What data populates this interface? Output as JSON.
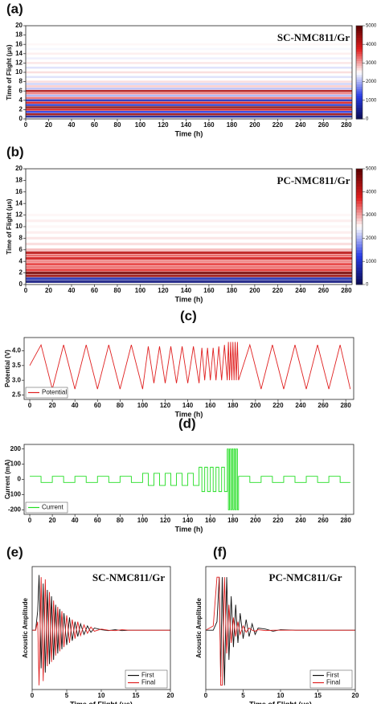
{
  "chart_data": [
    {
      "type": "heatmap",
      "panel_label": "(a)",
      "annotation": "SC-NMC811/Gr",
      "xlabel": "Time (h)",
      "ylabel": "Time of Flight (μs)",
      "xlim": [
        0,
        285
      ],
      "xticks": [
        0,
        20,
        40,
        60,
        80,
        100,
        120,
        140,
        160,
        180,
        200,
        220,
        240,
        260,
        280
      ],
      "ylim": [
        0,
        20
      ],
      "yticks": [
        0,
        2,
        4,
        6,
        8,
        10,
        12,
        14,
        16,
        18,
        20
      ],
      "rows_y": [
        0.5,
        1,
        1.5,
        2,
        2.5,
        3,
        3.5,
        4,
        4.5,
        5,
        5.5,
        6,
        6.5,
        7,
        7.5,
        8,
        9,
        10,
        11,
        12,
        13,
        14,
        15,
        16
      ],
      "values": [
        600,
        4400,
        1200,
        3900,
        4600,
        1000,
        3800,
        900,
        3300,
        2000,
        3200,
        4200,
        2100,
        2800,
        2200,
        2700,
        2300,
        2700,
        2300,
        2650,
        2400,
        2600,
        2450,
        2550
      ],
      "clim": [
        0,
        5000
      ],
      "cticks": [
        0,
        1000,
        2000,
        3000,
        4000,
        5000
      ]
    },
    {
      "type": "heatmap",
      "panel_label": "(b)",
      "annotation": "PC-NMC811/Gr",
      "xlabel": "Time (h)",
      "ylabel": "Time of Flight (μs)",
      "xlim": [
        0,
        285
      ],
      "xticks": [
        0,
        20,
        40,
        60,
        80,
        100,
        120,
        140,
        160,
        180,
        200,
        220,
        240,
        260,
        280
      ],
      "ylim": [
        0,
        20
      ],
      "yticks": [
        0,
        2,
        4,
        6,
        8,
        10,
        12,
        14,
        16,
        18,
        20
      ],
      "rows_y": [
        0.5,
        1,
        1.5,
        2,
        2.5,
        3,
        3.5,
        4,
        4.5,
        5,
        5.5,
        6,
        7,
        8,
        9,
        10,
        11,
        12
      ],
      "values": [
        400,
        800,
        4400,
        4700,
        3700,
        3300,
        3600,
        3200,
        3900,
        3400,
        4100,
        2900,
        2700,
        2650,
        2600,
        2550,
        2600,
        2550
      ],
      "clim": [
        0,
        5000
      ],
      "cticks": [
        0,
        1000,
        2000,
        3000,
        4000,
        5000
      ]
    },
    {
      "type": "line",
      "panel_label": "(c)",
      "xlabel": "Time (h)",
      "ylabel": "Potential (V)",
      "legend": "lower left",
      "xlim": [
        -5,
        287
      ],
      "xticks": [
        0,
        20,
        40,
        60,
        80,
        100,
        120,
        140,
        160,
        180,
        200,
        220,
        240,
        260,
        280
      ],
      "ylim": [
        2.35,
        4.45
      ],
      "yticks": [
        2.5,
        {
          "value": 3,
          "label": "3.0"
        },
        3.5,
        {
          "value": 4,
          "label": "4.0"
        }
      ],
      "x": [
        0,
        10,
        20,
        30,
        40,
        50,
        60,
        70,
        80,
        90,
        100,
        105,
        110,
        115,
        120,
        125,
        130,
        135,
        140,
        145,
        150,
        152.5,
        155,
        157.5,
        160,
        162.5,
        165,
        167.5,
        170,
        172.5,
        175,
        176,
        177,
        178,
        179,
        180,
        181,
        182,
        183,
        184,
        185,
        195,
        205,
        215,
        225,
        235,
        245,
        255,
        265,
        275,
        284
      ],
      "series": [
        {
          "name": "Potential",
          "color": "#e02020",
          "values": [
            3.5,
            4.2,
            2.7,
            4.2,
            2.7,
            4.2,
            2.7,
            4.2,
            2.7,
            4.2,
            2.7,
            4.15,
            2.9,
            4.15,
            2.9,
            4.15,
            2.9,
            4.15,
            2.9,
            4.15,
            2.9,
            4.1,
            3.0,
            4.1,
            3.0,
            4.1,
            3.0,
            4.15,
            3.0,
            4.2,
            3.0,
            4.3,
            3.0,
            4.3,
            3.0,
            4.3,
            3.0,
            4.3,
            3.0,
            4.3,
            3.0,
            4.2,
            2.7,
            4.2,
            2.7,
            4.2,
            2.7,
            4.2,
            2.7,
            4.2,
            2.7
          ]
        }
      ]
    },
    {
      "type": "line",
      "panel_label": "(d)",
      "xlabel": "Time (h)",
      "ylabel": "Current (mA)",
      "legend": "lower left",
      "xlim": [
        -5,
        287
      ],
      "xticks": [
        0,
        20,
        40,
        60,
        80,
        100,
        120,
        140,
        160,
        180,
        200,
        220,
        240,
        260,
        280
      ],
      "ylim": [
        -230,
        230
      ],
      "yticks": [
        -200,
        -100,
        0,
        100,
        200
      ],
      "x": [
        0,
        10,
        10,
        20,
        20,
        30,
        30,
        40,
        40,
        50,
        50,
        60,
        60,
        70,
        70,
        80,
        80,
        90,
        90,
        100,
        100,
        105,
        105,
        110,
        110,
        115,
        115,
        120,
        120,
        125,
        125,
        130,
        130,
        135,
        135,
        140,
        140,
        145,
        145,
        150,
        150,
        152.5,
        152.5,
        155,
        155,
        157.5,
        157.5,
        160,
        160,
        162.5,
        162.5,
        165,
        165,
        167.5,
        167.5,
        170,
        170,
        172.5,
        172.5,
        175,
        175,
        176,
        176,
        177,
        177,
        178,
        178,
        179,
        179,
        180,
        180,
        181,
        181,
        182,
        182,
        183,
        183,
        184,
        184,
        185,
        185,
        195,
        195,
        205,
        205,
        215,
        215,
        225,
        225,
        235,
        235,
        245,
        245,
        255,
        255,
        265,
        265,
        275,
        275,
        284
      ],
      "series": [
        {
          "name": "Current",
          "color": "#22dd22",
          "values": [
            20,
            20,
            -20,
            -20,
            20,
            20,
            -20,
            -20,
            20,
            20,
            -20,
            -20,
            20,
            20,
            -20,
            -20,
            20,
            20,
            -20,
            -20,
            40,
            40,
            -40,
            -40,
            40,
            40,
            -40,
            -40,
            40,
            40,
            -40,
            -40,
            40,
            40,
            -40,
            -40,
            40,
            40,
            -40,
            -40,
            80,
            80,
            -80,
            -80,
            80,
            80,
            -80,
            -80,
            80,
            80,
            -80,
            -80,
            80,
            80,
            -80,
            -80,
            80,
            80,
            -80,
            -80,
            200,
            200,
            -200,
            -200,
            200,
            200,
            -200,
            -200,
            200,
            200,
            -200,
            -200,
            200,
            200,
            -200,
            -200,
            200,
            200,
            -200,
            -200,
            20,
            20,
            -20,
            -20,
            20,
            20,
            -20,
            -20,
            20,
            20,
            -20,
            -20,
            20,
            20,
            -20,
            -20,
            20,
            20,
            -20,
            -20
          ]
        }
      ]
    },
    {
      "type": "line",
      "panel_label": "(e)",
      "annotation": "SC-NMC811/Gr",
      "xlabel": "Time of Flight (μs)",
      "ylabel": "Acoustic Amplitude",
      "legend": "lower right",
      "xlim": [
        0,
        20
      ],
      "xticks": [
        0,
        5,
        10,
        15,
        20
      ],
      "ylim": [
        -20,
        560
      ],
      "x": [
        0,
        0.5,
        0.8,
        1.0,
        1.3,
        1.6,
        1.9,
        2.2,
        2.5,
        2.8,
        3.1,
        3.4,
        3.7,
        4.0,
        4.3,
        4.6,
        5.0,
        5.4,
        5.8,
        6.2,
        6.6,
        7.0,
        7.5,
        8.0,
        8.5,
        9,
        10,
        11,
        12,
        13,
        14,
        15,
        20
      ],
      "series": [
        {
          "name": "First",
          "color": "#111111",
          "values": [
            260,
            260,
            350,
            520,
            80,
            480,
            60,
            450,
            100,
            420,
            120,
            380,
            150,
            360,
            170,
            340,
            190,
            320,
            210,
            300,
            230,
            290,
            240,
            280,
            250,
            270,
            262,
            258,
            262,
            258,
            260,
            260,
            260
          ]
        },
        {
          "name": "Final",
          "color": "#e02020",
          "values": [
            260,
            260,
            300,
            0,
            510,
            20,
            500,
            90,
            440,
            110,
            400,
            140,
            370,
            160,
            350,
            180,
            330,
            200,
            310,
            220,
            300,
            235,
            285,
            245,
            275,
            255,
            265,
            260,
            258,
            262,
            260,
            260,
            260
          ]
        }
      ]
    },
    {
      "type": "line",
      "panel_label": "(f)",
      "annotation": "PC-NMC811/Gr",
      "xlabel": "Time of Flight (μs)",
      "ylabel": "Acoustic Amplitude",
      "legend": "lower right",
      "xlim": [
        0,
        20
      ],
      "xticks": [
        0,
        5,
        10,
        15,
        20
      ],
      "ylim": [
        -20,
        560
      ],
      "x": [
        0,
        1.0,
        1.5,
        1.8,
        2.0,
        2.2,
        2.5,
        2.8,
        3.1,
        3.4,
        3.7,
        4.0,
        4.3,
        4.6,
        5.0,
        5.4,
        5.8,
        6.2,
        6.6,
        7,
        8,
        9,
        10,
        12,
        15,
        20
      ],
      "series": [
        {
          "name": "First",
          "color": "#111111",
          "values": [
            260,
            260,
            300,
            510,
            40,
            510,
            0,
            510,
            120,
            420,
            180,
            380,
            200,
            340,
            220,
            310,
            230,
            290,
            240,
            270,
            265,
            255,
            262,
            260,
            260,
            260
          ]
        },
        {
          "name": "Final",
          "color": "#e02020",
          "values": [
            260,
            280,
            510,
            510,
            0,
            0,
            510,
            150,
            380,
            200,
            320,
            230,
            300,
            240,
            280,
            250,
            270,
            260,
            255,
            262,
            258,
            260,
            260,
            260,
            260,
            260
          ]
        }
      ]
    }
  ]
}
